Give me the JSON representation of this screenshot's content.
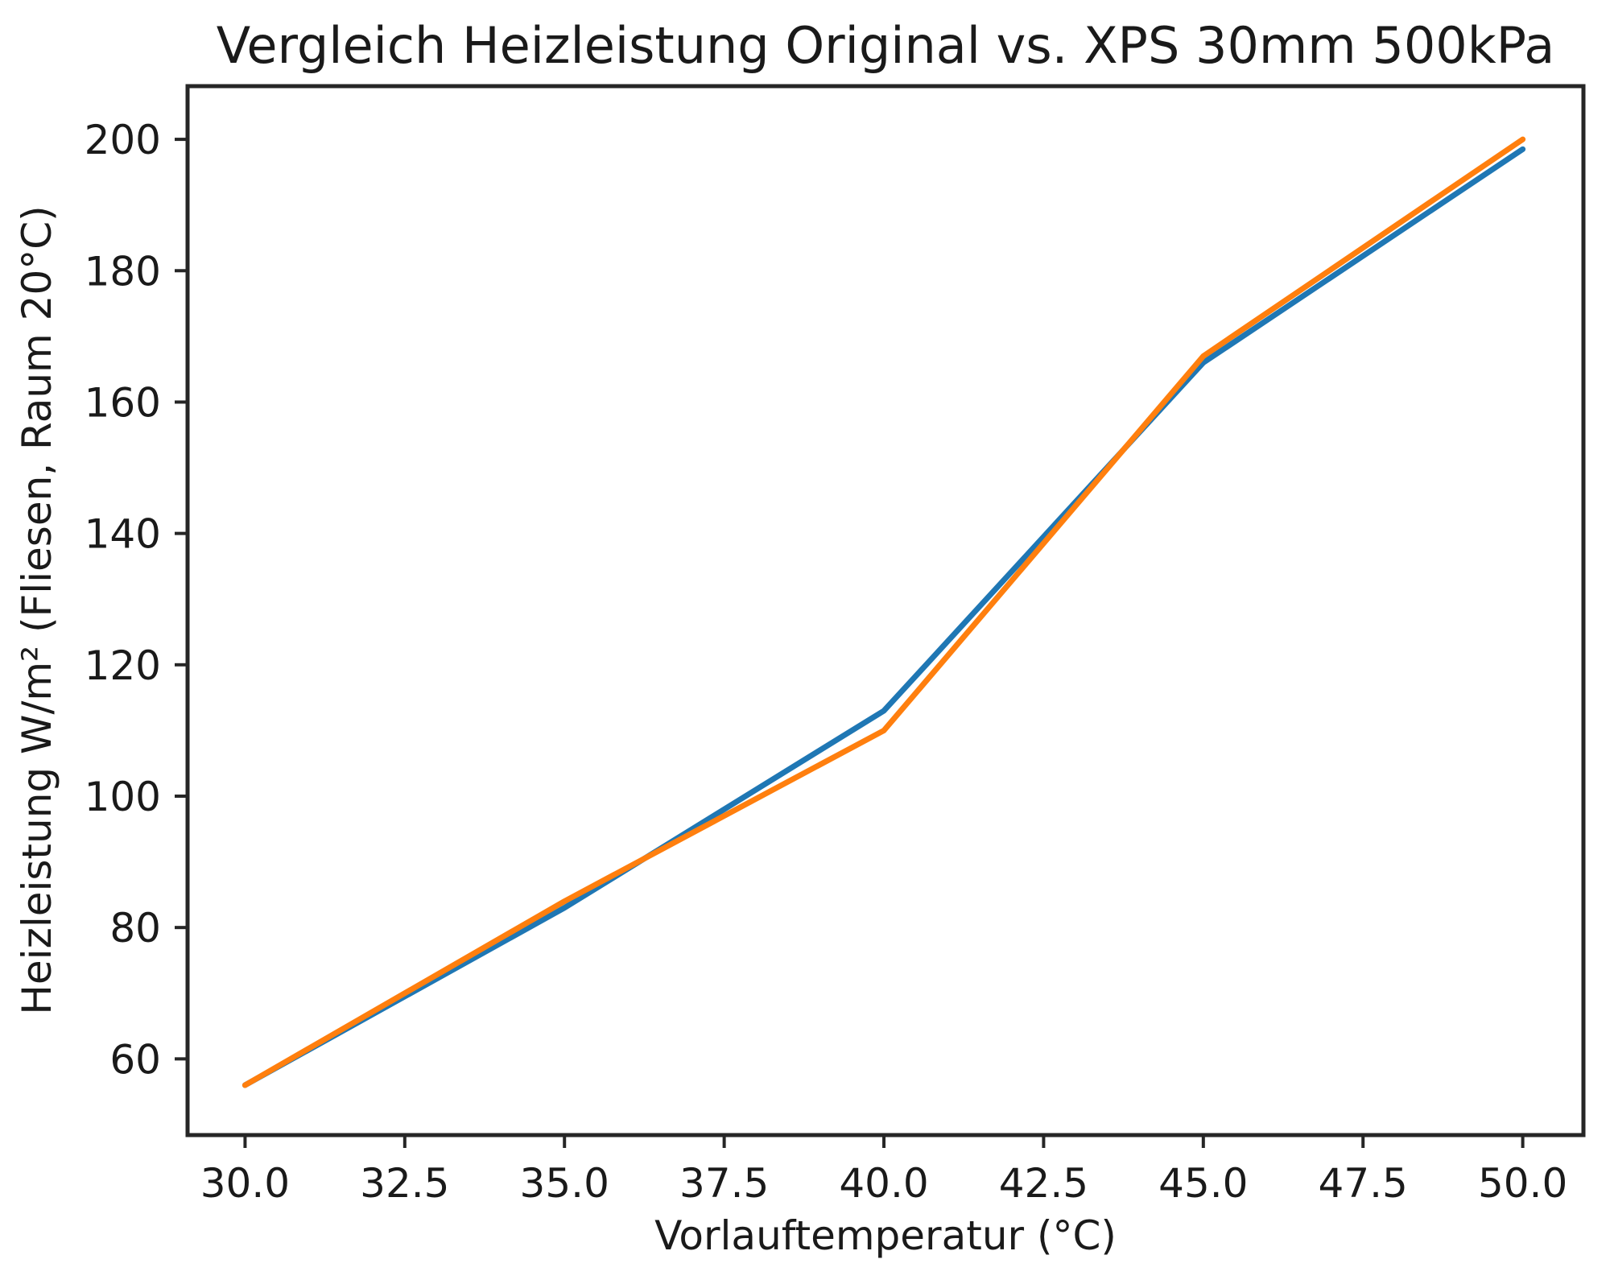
{
  "figure": {
    "background": "#ffffff"
  },
  "chart_data": {
    "type": "line",
    "title": "Vergleich Heizleistung Original vs. XPS 30mm 500kPa",
    "xlabel": "Vorlauftemperatur (°C)",
    "ylabel": "Heizleistung W/m² (Fliesen, Raum 20°C)",
    "x": [
      30,
      35,
      40,
      45,
      50
    ],
    "series": [
      {
        "name": "Original",
        "color": "#1f77b4",
        "values": [
          56,
          83,
          113,
          166,
          198.5
        ]
      },
      {
        "name": "XPS 30mm 500kPa",
        "color": "#ff7f0e",
        "values": [
          56,
          84,
          110,
          167,
          200
        ]
      }
    ],
    "xticks": {
      "values": [
        30,
        32.5,
        35,
        37.5,
        40,
        42.5,
        45,
        47.5,
        50
      ],
      "labels": [
        "30.0",
        "32.5",
        "35.0",
        "37.5",
        "40.0",
        "42.5",
        "45.0",
        "47.5",
        "50.0"
      ]
    },
    "yticks": {
      "values": [
        60,
        80,
        100,
        120,
        140,
        160,
        180,
        200
      ],
      "labels": [
        "60",
        "80",
        "100",
        "120",
        "140",
        "160",
        "180",
        "200"
      ]
    },
    "xlim": [
      29.1,
      50.95
    ],
    "ylim": [
      48.4,
      208.1
    ],
    "grid": false,
    "legend": null,
    "axis_color": "#262626",
    "text_color": "#1a1a1a"
  }
}
